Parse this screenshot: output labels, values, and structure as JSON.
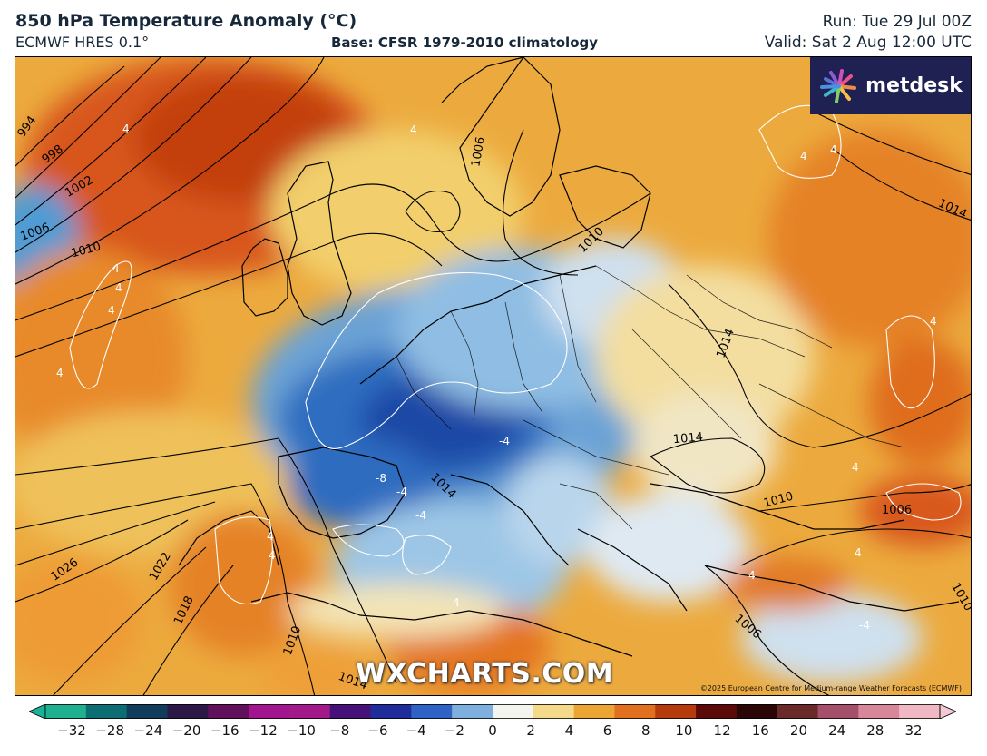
{
  "header": {
    "title": "850 hPa Temperature Anomaly (°C)",
    "model": "ECMWF HRES 0.1°",
    "base": "Base: CFSR 1979-2010 climatology",
    "run": "Run: Tue 29 Jul 00Z",
    "valid": "Valid: Sat 2 Aug 12:00 UTC"
  },
  "logo": {
    "text": "metdesk",
    "icon": "flower-burst-icon"
  },
  "watermark": "WXCHARTS.COM",
  "copyright": "©2025 European Centre for Medium-range Weather Forecasts (ECMWF)",
  "isobar_labels": [
    "994",
    "998",
    "1002",
    "1006",
    "1010",
    "1006",
    "1010",
    "1014",
    "1014",
    "1014",
    "1010",
    "1006",
    "1026",
    "1022",
    "1018",
    "1014",
    "1006",
    "1010",
    "1014",
    "1010"
  ],
  "anomaly_labels": [
    "4",
    "4",
    "4",
    "4",
    "4",
    "4",
    "4",
    "4",
    "4",
    "4",
    "4",
    "-4",
    "-4",
    "-4",
    "-8",
    "4",
    "4",
    "4",
    "-4",
    "4"
  ],
  "colorbar": {
    "ticks": [
      "−32",
      "−28",
      "−24",
      "−20",
      "−16",
      "−12",
      "−10",
      "−8",
      "−6",
      "−4",
      "−2",
      "0",
      "2",
      "4",
      "6",
      "8",
      "10",
      "12",
      "16",
      "20",
      "24",
      "28",
      "32"
    ],
    "colors": [
      "#1fb08f",
      "#0c6e73",
      "#123c5c",
      "#2b1847",
      "#61105b",
      "#a3158f",
      "#a21a8a",
      "#46127a",
      "#1f2d9b",
      "#2f62c4",
      "#7fb0dd",
      "#f4f4ef",
      "#f4d98a",
      "#eaa535",
      "#e07020",
      "#b53a0c",
      "#5c0a08",
      "#2a0606",
      "#6a2a2a",
      "#a5506a",
      "#d8879a",
      "#f0b8c4"
    ]
  }
}
